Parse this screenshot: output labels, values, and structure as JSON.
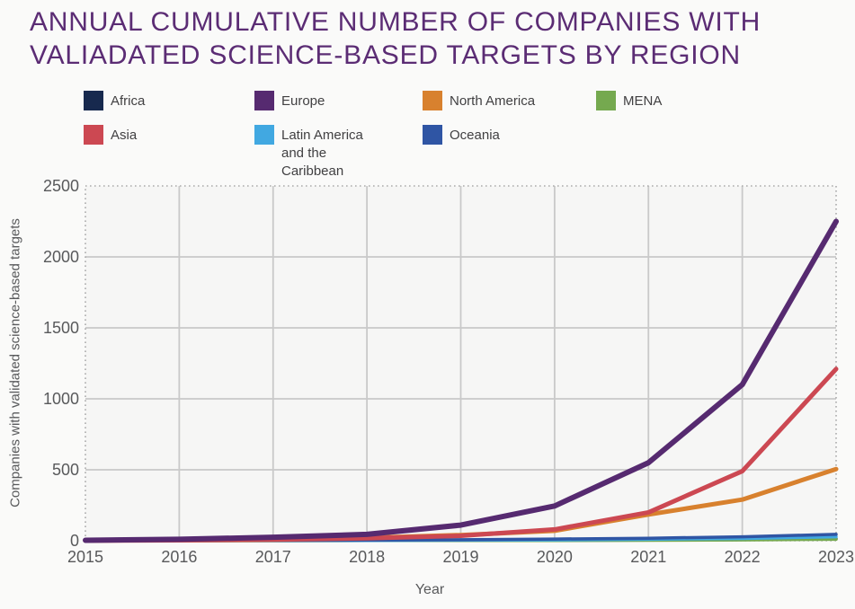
{
  "page": {
    "background": "#fafaf9"
  },
  "title": {
    "line1": "ANNUAL CUMULATIVE NUMBER OF COMPANIES WITH",
    "line2": "VALIADATED SCIENCE-BASED TARGETS BY REGION",
    "color": "#5b2c74"
  },
  "axis_style": {
    "text_color": "#58595b",
    "grid_color": "#c9c9c9",
    "border_color": "#ababab",
    "plot_background": "#f6f6f5"
  },
  "chart_data": {
    "type": "line",
    "title": "Annual cumulative number of companies with valiadated science-based targets by region",
    "x": [
      2015,
      2016,
      2017,
      2018,
      2019,
      2020,
      2021,
      2022,
      2023
    ],
    "xlabel": "Year",
    "ylabel": "Companies with validated science-based targets",
    "ylim": [
      0,
      2500
    ],
    "y_ticks": [
      0,
      500,
      1000,
      1500,
      2000,
      2500
    ],
    "grid": true,
    "legend_position": "top",
    "series": [
      {
        "name": "Africa",
        "color": "#17294e",
        "values": [
          0,
          0,
          1,
          1,
          2,
          3,
          5,
          8,
          14
        ]
      },
      {
        "name": "Europe",
        "color": "#562a70",
        "values": [
          3,
          10,
          25,
          45,
          110,
          245,
          550,
          1100,
          2250
        ]
      },
      {
        "name": "North America",
        "color": "#d8812e",
        "values": [
          2,
          5,
          10,
          20,
          40,
          70,
          185,
          290,
          505
        ]
      },
      {
        "name": "MENA",
        "color": "#75a94f",
        "values": [
          0,
          0,
          0,
          1,
          1,
          2,
          3,
          6,
          10
        ]
      },
      {
        "name": "Asia",
        "color": "#cc4852",
        "values": [
          1,
          3,
          8,
          18,
          35,
          80,
          200,
          490,
          1210
        ]
      },
      {
        "name": "Latin America and the Caribbean",
        "color": "#41a8e1",
        "values": [
          0,
          1,
          1,
          2,
          4,
          6,
          10,
          16,
          28
        ]
      },
      {
        "name": "Oceania",
        "color": "#2f55a4",
        "values": [
          0,
          1,
          2,
          4,
          7,
          12,
          18,
          28,
          45
        ]
      }
    ]
  }
}
